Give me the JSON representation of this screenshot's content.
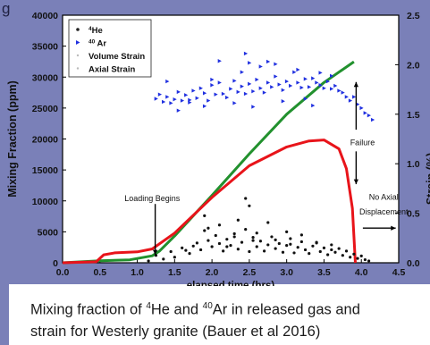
{
  "slide": {
    "header_stub": "g",
    "caption": {
      "line1": {
        "part1": "Mixing fraction of ",
        "sup1": "4",
        "part2": "He and ",
        "sup2": "40",
        "part3": "Ar in released gas and"
      },
      "line2": "strain  for Westerly granite (Bauer et al 2016)"
    }
  },
  "chart_data": {
    "type": "scatter",
    "xlabel": "elapsed time (hrs)",
    "ylabel": "Mixing Fraction (ppm)",
    "y2label": "Strain (%)",
    "xlim": [
      0.0,
      4.5
    ],
    "ylim": [
      0,
      40000
    ],
    "y2lim": [
      0,
      2.5
    ],
    "x_ticks": [
      "0.0",
      "0.5",
      "1.0",
      "1.5",
      "2.0",
      "2.5",
      "3.0",
      "3.5",
      "4.0",
      "4.5"
    ],
    "y_ticks": [
      "0",
      "5000",
      "10000",
      "15000",
      "20000",
      "25000",
      "30000",
      "35000",
      "40000"
    ],
    "y2_ticks": [
      "0.0",
      "0.5",
      "1.0",
      "1.5",
      "2.0",
      "2.5"
    ],
    "legend_position": "top-left",
    "legend": [
      {
        "label_main": "He",
        "label_sup": "4",
        "marker": "dot"
      },
      {
        "label_main": " Ar",
        "label_sup": "40",
        "marker": "triangle"
      },
      {
        "label_main": "Volume Strain",
        "label_sup": "",
        "marker": "faint"
      },
      {
        "label_main": "Axial Strain",
        "label_sup": "",
        "marker": "faint"
      }
    ],
    "annotations": [
      {
        "text": "Loading Begins",
        "x": 1.2,
        "y": 10000
      },
      {
        "text": "Failure",
        "x": 3.85,
        "y": 19000
      },
      {
        "text": "No Axial",
        "x": 4.3,
        "y": 10200
      },
      {
        "text": "Displacement",
        "x": 4.3,
        "y": 7800
      }
    ],
    "series": [
      {
        "name": "Axial Strain",
        "axis": "right",
        "color": "#22912e",
        "x": [
          0.0,
          0.5,
          0.9,
          1.2,
          1.3,
          1.5,
          2.0,
          2.5,
          3.0,
          3.5,
          3.9
        ],
        "y": [
          0.0,
          0.02,
          0.03,
          0.07,
          0.12,
          0.27,
          0.68,
          1.1,
          1.5,
          1.82,
          2.03
        ]
      },
      {
        "name": "Volume Strain",
        "axis": "right",
        "color": "#e8141a",
        "x": [
          0.0,
          0.45,
          0.55,
          0.7,
          1.0,
          1.2,
          1.5,
          2.0,
          2.5,
          3.0,
          3.3,
          3.5,
          3.7,
          3.8,
          3.88,
          3.92
        ],
        "y": [
          0.0,
          0.01,
          0.08,
          0.1,
          0.11,
          0.14,
          0.3,
          0.66,
          0.98,
          1.17,
          1.23,
          1.24,
          1.15,
          0.95,
          0.55,
          0.0
        ]
      },
      {
        "name": "40 Ar",
        "axis": "left",
        "color": "#2030e0",
        "x": [
          1.25,
          1.3,
          1.35,
          1.4,
          1.45,
          1.5,
          1.55,
          1.6,
          1.65,
          1.7,
          1.75,
          1.8,
          1.85,
          1.9,
          1.95,
          2.0,
          2.05,
          2.1,
          2.15,
          2.2,
          2.25,
          2.3,
          2.35,
          2.4,
          2.45,
          2.5,
          2.55,
          2.6,
          2.65,
          2.7,
          2.75,
          2.8,
          2.85,
          2.9,
          2.95,
          3.0,
          3.05,
          3.1,
          3.15,
          3.2,
          3.25,
          3.3,
          3.35,
          3.4,
          3.45,
          3.5,
          3.55,
          3.6,
          3.65,
          3.7,
          3.75,
          3.8,
          3.85,
          3.9,
          3.95,
          4.0,
          4.05,
          4.1,
          4.15,
          2.45,
          2.5,
          2.4,
          2.1,
          2.65,
          1.55,
          1.9,
          2.3,
          2.85,
          3.15,
          3.45,
          1.4,
          1.7,
          2.0,
          2.55,
          2.75,
          3.25,
          3.6,
          2.95,
          3.35
        ],
        "y": [
          26500,
          27200,
          26000,
          26800,
          25800,
          26400,
          27600,
          26200,
          27100,
          26300,
          27800,
          26600,
          28200,
          27400,
          26200,
          28700,
          27200,
          29100,
          27300,
          26700,
          28100,
          29400,
          27600,
          28500,
          27300,
          28900,
          27700,
          29600,
          28200,
          27500,
          29100,
          28400,
          30100,
          28800,
          27900,
          29300,
          28600,
          30800,
          29100,
          28300,
          29700,
          28400,
          29800,
          29100,
          28700,
          28200,
          29300,
          28100,
          28600,
          27800,
          27500,
          26800,
          26200,
          26800,
          25600,
          25000,
          24200,
          23800,
          23100,
          33800,
          32300,
          30800,
          32600,
          31700,
          24600,
          25300,
          25800,
          32100,
          31200,
          30700,
          29300,
          25900,
          29600,
          25200,
          32500,
          26500,
          30200,
          26100,
          25400
        ]
      },
      {
        "name": "4He",
        "axis": "left",
        "color": "#111111",
        "x": [
          1.15,
          1.25,
          1.35,
          1.45,
          1.5,
          1.6,
          1.7,
          1.8,
          1.85,
          1.9,
          1.95,
          2.0,
          2.05,
          2.1,
          2.15,
          2.2,
          2.25,
          2.3,
          2.35,
          2.4,
          2.45,
          2.5,
          2.55,
          2.6,
          2.65,
          2.7,
          2.75,
          2.8,
          2.85,
          2.9,
          2.95,
          3.0,
          3.05,
          3.1,
          3.15,
          3.2,
          3.25,
          3.3,
          3.35,
          3.4,
          3.45,
          3.5,
          3.55,
          3.6,
          3.65,
          3.7,
          3.75,
          3.8,
          3.85,
          3.9,
          3.95,
          4.0,
          4.05,
          4.1,
          1.9,
          2.45,
          2.5,
          1.95,
          2.3,
          2.75,
          3.0,
          2.1,
          2.6,
          3.4,
          1.75,
          2.55,
          3.2,
          1.65,
          2.2,
          2.85,
          3.6,
          2.35,
          3.05
        ],
        "y": [
          300,
          1200,
          600,
          1800,
          900,
          2400,
          1500,
          3200,
          2100,
          5200,
          3600,
          2600,
          4400,
          3100,
          1900,
          3800,
          2800,
          4700,
          2200,
          3300,
          5400,
          1800,
          4100,
          2600,
          3500,
          1900,
          2900,
          4200,
          2300,
          3100,
          1700,
          2800,
          3900,
          1600,
          2500,
          3400,
          2100,
          1500,
          2700,
          3300,
          1800,
          2400,
          1300,
          2900,
          1700,
          2300,
          1200,
          1900,
          900,
          1400,
          700,
          1100,
          500,
          300,
          7600,
          10400,
          9200,
          5600,
          4200,
          6500,
          5000,
          6100,
          4800,
          3200,
          2700,
          3600,
          4500,
          2000,
          2600,
          3700,
          2100,
          6900,
          3000
        ]
      }
    ]
  }
}
